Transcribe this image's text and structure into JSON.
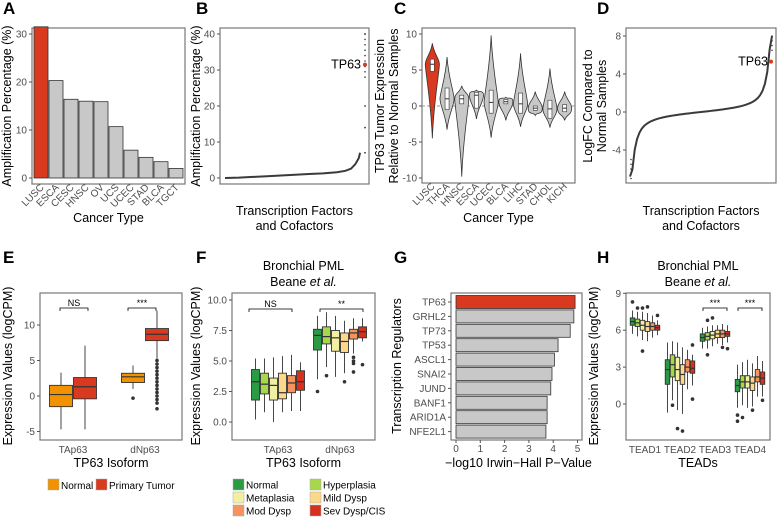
{
  "colors": {
    "red": "#d9391f",
    "grey": "#c8c8c8",
    "orange": "#f39200",
    "dark": "#3a3a3a"
  },
  "chart_data": [
    {
      "panel": "A",
      "type": "bar",
      "ylabel": "Amplification Percentage (%)",
      "xlabel": "Cancer Type",
      "ylim": [
        0,
        33
      ],
      "yticks": [
        "0",
        "10",
        "20",
        "30"
      ],
      "categories": [
        "LUSC",
        "ESCA",
        "CESC",
        "HNSC",
        "OV",
        "UCS",
        "UCEC",
        "STAD",
        "BLCA",
        "TGCT"
      ],
      "values": [
        31.5,
        20.3,
        16.4,
        16.0,
        15.9,
        10.7,
        5.8,
        4.3,
        3.4,
        2.0
      ],
      "highlight": "LUSC"
    },
    {
      "panel": "B",
      "type": "scatter",
      "ylabel": "Amplification Percentage (%)",
      "xlabel": [
        "Transcription Factors",
        "and Cofactors"
      ],
      "ylim": [
        0,
        41
      ],
      "yticks": [
        "0",
        "10",
        "20",
        "30",
        "40"
      ],
      "sorted_values_quantiles": [
        0,
        0.1,
        0.3,
        0.5,
        0.7,
        0.9,
        1.1,
        1.3,
        1.6,
        2.0,
        2.6,
        3.8,
        5.5,
        7,
        14,
        20,
        31,
        40
      ],
      "highlight": {
        "label": "TP63",
        "value": 31.5
      }
    },
    {
      "panel": "C",
      "type": "violin",
      "ylabel": [
        "TP63 Tumor Expression",
        "Relative to Normal Samples"
      ],
      "xlabel": "Cancer Type",
      "ylim": [
        -10.5,
        10.5
      ],
      "yticks": [
        "-10",
        "-5",
        "0",
        "5",
        "10"
      ],
      "categories": [
        "LUSC",
        "THCA",
        "HNSC",
        "ESCA",
        "UCEC",
        "BLCA",
        "LIHC",
        "STAD",
        "CHOL",
        "KICH"
      ],
      "median": [
        5.8,
        1.0,
        1.0,
        1.5,
        0.5,
        0.6,
        0.3,
        -0.3,
        -0.4,
        -0.3
      ],
      "min": [
        -4.5,
        -3.3,
        -9.8,
        -1.8,
        -4.4,
        -2.0,
        -2.9,
        -1.3,
        -3.0,
        -2.0
      ],
      "max": [
        8.7,
        6.8,
        2.8,
        2.2,
        9.8,
        1.2,
        7.3,
        2.0,
        5.2,
        2.0
      ],
      "q1": [
        4.8,
        -0.5,
        0.3,
        -0.3,
        -1.0,
        0.3,
        -1.0,
        -0.6,
        -1.7,
        -0.8
      ],
      "q3": [
        6.5,
        2.5,
        1.5,
        1.9,
        2.2,
        0.9,
        1.8,
        0.0,
        0.8,
        0.2
      ],
      "highlight": "LUSC"
    },
    {
      "panel": "D",
      "type": "scatter",
      "ylabel": [
        "LogFC Compared to",
        "Normal Samples"
      ],
      "xlabel": [
        "Transcription Factors",
        "and Cofactors"
      ],
      "ylim": [
        -7.5,
        8.5
      ],
      "yticks": [
        "-4",
        "0",
        "4",
        "8"
      ],
      "sorted_values_quantiles": [
        -7,
        -5,
        -4,
        -2.5,
        -1.5,
        -0.9,
        -0.5,
        -0.2,
        0,
        0.2,
        0.4,
        0.7,
        1.1,
        1.8,
        3,
        4.5,
        6,
        8
      ],
      "highlight": {
        "label": "TP63",
        "value": 5.3
      }
    },
    {
      "panel": "E",
      "type": "box",
      "ylabel": "Expression Values (logCPM)",
      "xlabel": "TP63 Isoform",
      "ylim": [
        -6,
        14
      ],
      "yticks": [
        "-5",
        "0",
        "5",
        "10"
      ],
      "categories": [
        "TAp63",
        "dNp63"
      ],
      "significance": [
        "NS",
        "***"
      ],
      "legend": [
        {
          "label": "Normal",
          "color": "#f39200"
        },
        {
          "label": "Primary Tumor",
          "color": "#d9391f"
        }
      ],
      "boxes": [
        [
          {
            "q1": -1.5,
            "median": 0.2,
            "q3": 1.5,
            "lo": -4.7,
            "hi": 3.3,
            "outliers": []
          },
          {
            "q1": -0.4,
            "median": 1.3,
            "q3": 2.6,
            "lo": -4.7,
            "hi": 7.1,
            "outliers": []
          }
        ],
        [
          {
            "q1": 1.9,
            "median": 2.7,
            "q3": 3.2,
            "lo": 1.0,
            "hi": 4.3,
            "outliers": [
              -0.3
            ]
          },
          {
            "q1": 7.8,
            "median": 8.7,
            "q3": 9.5,
            "lo": 5.2,
            "hi": 12.0,
            "outliers": [
              5,
              4.5,
              4,
              3.5,
              3,
              2.5,
              2,
              1.5,
              1,
              0.5,
              0,
              -0.5,
              -1,
              -1.8
            ]
          }
        ]
      ]
    },
    {
      "panel": "F",
      "type": "box",
      "title": [
        "Bronchial PML",
        "Beane",
        "et al."
      ],
      "ylabel": "Expression Values (logCPM)",
      "xlabel": "TP63 Isoform",
      "ylim": [
        -1.3,
        10.5
      ],
      "yticks": [
        "0.0",
        "2.5",
        "5.0",
        "7.5",
        "10.0"
      ],
      "categories": [
        "TAp63",
        "dNp63"
      ],
      "significance": [
        "NS",
        "**"
      ],
      "legend": [
        {
          "label": "Normal",
          "color": "#2a9a45"
        },
        {
          "label": "Hyperplasia",
          "color": "#a6d84a"
        },
        {
          "label": "Metaplasia",
          "color": "#f1f0a2"
        },
        {
          "label": "Mild Dysp",
          "color": "#fcd88a"
        },
        {
          "label": "Mod Dysp",
          "color": "#f7935c"
        },
        {
          "label": "Sev Dysp/CIS",
          "color": "#d7301f"
        }
      ],
      "boxes": [
        [
          {
            "q1": 1.8,
            "median": 3.3,
            "q3": 4.3,
            "lo": 0.2,
            "hi": 5.2,
            "outliers": []
          },
          {
            "q1": 2.3,
            "median": 3.1,
            "q3": 4.0,
            "lo": 0.8,
            "hi": 5.2,
            "outliers": []
          },
          {
            "q1": 1.8,
            "median": 3.0,
            "q3": 3.6,
            "lo": 0,
            "hi": 5.3,
            "outliers": []
          },
          {
            "q1": 1.9,
            "median": 2.4,
            "q3": 4.0,
            "lo": 0.8,
            "hi": 5.4,
            "outliers": []
          },
          {
            "q1": 2.4,
            "median": 3.2,
            "q3": 3.8,
            "lo": 0.9,
            "hi": 5.5,
            "outliers": []
          },
          {
            "q1": 2.6,
            "median": 3.3,
            "q3": 4.2,
            "lo": 0.9,
            "hi": 4.9,
            "outliers": []
          }
        ],
        [
          {
            "q1": 5.9,
            "median": 7.1,
            "q3": 7.6,
            "lo": 3.5,
            "hi": 8.7,
            "outliers": [
              2.5
            ]
          },
          {
            "q1": 6.4,
            "median": 7.0,
            "q3": 7.8,
            "lo": 4.5,
            "hi": 9.0,
            "outliers": [
              3.8
            ]
          },
          {
            "q1": 5.8,
            "median": 6.9,
            "q3": 7.5,
            "lo": 3.7,
            "hi": 8.7,
            "outliers": []
          },
          {
            "q1": 5.7,
            "median": 6.6,
            "q3": 7.3,
            "lo": 4.0,
            "hi": 8.3,
            "outliers": [
              3.3
            ]
          },
          {
            "q1": 6.8,
            "median": 7.3,
            "q3": 7.6,
            "lo": 5.6,
            "hi": 8.5,
            "outliers": [
              5.3,
              5.0,
              4.8,
              4.1
            ]
          },
          {
            "q1": 6.9,
            "median": 7.4,
            "q3": 7.8,
            "lo": 6.6,
            "hi": 8.5,
            "outliers": [
              4.7
            ]
          }
        ]
      ]
    },
    {
      "panel": "G",
      "type": "bar",
      "orientation": "horizontal",
      "ylabel": "Transcription Regulators",
      "xlabel": "−log10 Irwin−Hall P−Value",
      "xlim": [
        0,
        5.2
      ],
      "xticks": [
        "0",
        "1",
        "2",
        "3",
        "4",
        "5"
      ],
      "categories": [
        "TP63",
        "GRHL2",
        "TP73",
        "TP53",
        "ASCL1",
        "SNAI2",
        "JUND",
        "BANF1",
        "ARID1A",
        "NFE2L1"
      ],
      "values": [
        4.9,
        4.85,
        4.7,
        4.2,
        4.05,
        3.95,
        3.9,
        3.75,
        3.75,
        3.7
      ],
      "highlight": "TP63"
    },
    {
      "panel": "H",
      "type": "box",
      "title": [
        "Bronchial PML",
        "Beane",
        "et al."
      ],
      "ylabel": "Expression Values (logCPM)",
      "xlabel": "TEADs",
      "ylim": [
        -2.7,
        9.2
      ],
      "yticks": [
        "0",
        "3",
        "6",
        "9"
      ],
      "categories": [
        "TEAD1",
        "TEAD2",
        "TEAD3",
        "TEAD4"
      ],
      "significance": [
        "",
        "",
        "***",
        "***"
      ],
      "boxes": [
        [
          {
            "q1": 6.4,
            "median": 6.7,
            "q3": 7.0,
            "lo": 5.7,
            "hi": 7.6,
            "outliers": [
              8.3
            ]
          },
          {
            "q1": 6.3,
            "median": 6.6,
            "q3": 6.9,
            "lo": 5.5,
            "hi": 7.5,
            "outliers": [
              7.8
            ]
          },
          {
            "q1": 6.0,
            "median": 6.4,
            "q3": 6.8,
            "lo": 5.2,
            "hi": 7.5,
            "outliers": [
              7.8,
              4.3
            ]
          },
          {
            "q1": 5.9,
            "median": 6.3,
            "q3": 6.7,
            "lo": 5.1,
            "hi": 7.4,
            "outliers": [
              7.9
            ]
          },
          {
            "q1": 6.0,
            "median": 6.3,
            "q3": 6.6,
            "lo": 5.4,
            "hi": 7.2,
            "outliers": []
          },
          {
            "q1": 6.0,
            "median": 6.2,
            "q3": 6.4,
            "lo": 5.6,
            "hi": 6.8,
            "outliers": [
              7.2
            ]
          }
        ],
        [
          {
            "q1": 1.6,
            "median": 2.8,
            "q3": 3.6,
            "lo": -0.7,
            "hi": 5.0,
            "outliers": []
          },
          {
            "q1": 2.2,
            "median": 3.2,
            "q3": 4.0,
            "lo": 0.3,
            "hi": 5.1,
            "outliers": [
              -0.1
            ]
          },
          {
            "q1": 1.9,
            "median": 2.8,
            "q3": 3.8,
            "lo": -0.5,
            "hi": 5.0,
            "outliers": [
              -2.0
            ]
          },
          {
            "q1": 1.6,
            "median": 2.4,
            "q3": 3.2,
            "lo": -0.8,
            "hi": 4.6,
            "outliers": [
              -2.2
            ]
          },
          {
            "q1": 2.6,
            "median": 3.0,
            "q3": 3.6,
            "lo": 1.2,
            "hi": 4.4,
            "outliers": []
          },
          {
            "q1": 2.5,
            "median": 2.9,
            "q3": 3.5,
            "lo": 1.5,
            "hi": 4.0,
            "outliers": [
              4.8,
              0.4
            ]
          }
        ],
        [
          {
            "q1": 5.1,
            "median": 5.4,
            "q3": 5.7,
            "lo": 4.5,
            "hi": 6.2,
            "outliers": []
          },
          {
            "q1": 5.2,
            "median": 5.5,
            "q3": 5.8,
            "lo": 4.5,
            "hi": 6.3,
            "outliers": [
              4.0,
              6.8
            ]
          },
          {
            "q1": 5.3,
            "median": 5.6,
            "q3": 5.9,
            "lo": 4.7,
            "hi": 6.4,
            "outliers": [
              7.0
            ]
          },
          {
            "q1": 5.4,
            "median": 5.7,
            "q3": 6.0,
            "lo": 4.9,
            "hi": 6.4,
            "outliers": []
          },
          {
            "q1": 5.4,
            "median": 5.7,
            "q3": 6.0,
            "lo": 4.8,
            "hi": 6.5,
            "outliers": [
              4.6
            ]
          },
          {
            "q1": 5.5,
            "median": 5.7,
            "q3": 5.9,
            "lo": 5.0,
            "hi": 6.4,
            "outliers": [
              4.5
            ]
          }
        ],
        [
          {
            "q1": 1.0,
            "median": 1.5,
            "q3": 2.0,
            "lo": -0.3,
            "hi": 3.2,
            "outliers": [
              -0.9,
              -1.4
            ]
          },
          {
            "q1": 1.3,
            "median": 1.8,
            "q3": 2.3,
            "lo": -0.1,
            "hi": 3.4,
            "outliers": [
              -1.1
            ]
          },
          {
            "q1": 1.3,
            "median": 1.8,
            "q3": 2.3,
            "lo": -0.3,
            "hi": 3.6,
            "outliers": []
          },
          {
            "q1": 1.1,
            "median": 1.7,
            "q3": 2.2,
            "lo": -0.2,
            "hi": 3.3,
            "outliers": [
              -0.5
            ]
          },
          {
            "q1": 1.8,
            "median": 2.2,
            "q3": 2.8,
            "lo": 0.6,
            "hi": 3.9,
            "outliers": []
          },
          {
            "q1": 1.6,
            "median": 2.1,
            "q3": 2.6,
            "lo": 0.6,
            "hi": 3.5,
            "outliers": [
              0.3
            ]
          }
        ]
      ]
    }
  ]
}
